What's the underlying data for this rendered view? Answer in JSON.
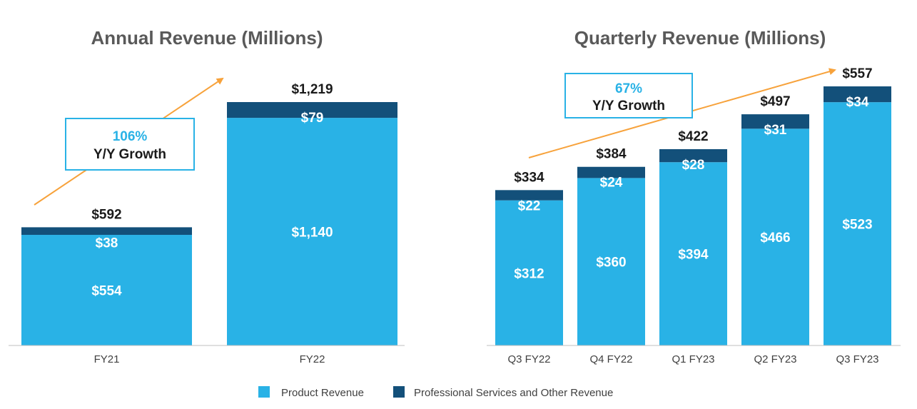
{
  "colors": {
    "product": "#29b2e6",
    "services": "#13507a",
    "arrow": "#f7a23b",
    "axis": "#bfbfbf"
  },
  "legend": {
    "product_label": "Product Revenue",
    "services_label": "Professional Services and Other Revenue"
  },
  "chart_data": [
    {
      "type": "bar",
      "stacked": true,
      "title": "Annual Revenue (Millions)",
      "categories": [
        "FY21",
        "FY22"
      ],
      "series": [
        {
          "name": "Product Revenue",
          "values": [
            554,
            1140
          ],
          "labels": [
            "$554",
            "$1,140"
          ]
        },
        {
          "name": "Professional Services and Other Revenue",
          "values": [
            38,
            79
          ],
          "labels": [
            "$38",
            "$79"
          ]
        }
      ],
      "totals": [
        592,
        1219
      ],
      "total_labels": [
        "$592",
        "$1,219"
      ],
      "ylim": [
        0,
        1219
      ],
      "growth": {
        "pct": "106%",
        "label": "Y/Y Growth"
      }
    },
    {
      "type": "bar",
      "stacked": true,
      "title": "Quarterly Revenue (Millions)",
      "categories": [
        "Q3 FY22",
        "Q4 FY22",
        "Q1 FY23",
        "Q2 FY23",
        "Q3 FY23"
      ],
      "series": [
        {
          "name": "Product Revenue",
          "values": [
            312,
            360,
            394,
            466,
            523
          ],
          "labels": [
            "$312",
            "$360",
            "$394",
            "$466",
            "$523"
          ]
        },
        {
          "name": "Professional Services and Other Revenue",
          "values": [
            22,
            24,
            28,
            31,
            34
          ],
          "labels": [
            "$22",
            "$24",
            "$28",
            "$31",
            "$34"
          ]
        }
      ],
      "totals": [
        334,
        384,
        422,
        497,
        557
      ],
      "total_labels": [
        "$334",
        "$384",
        "$422",
        "$497",
        "$557"
      ],
      "ylim": [
        0,
        557
      ],
      "growth": {
        "pct": "67%",
        "label": "Y/Y Growth"
      }
    }
  ]
}
